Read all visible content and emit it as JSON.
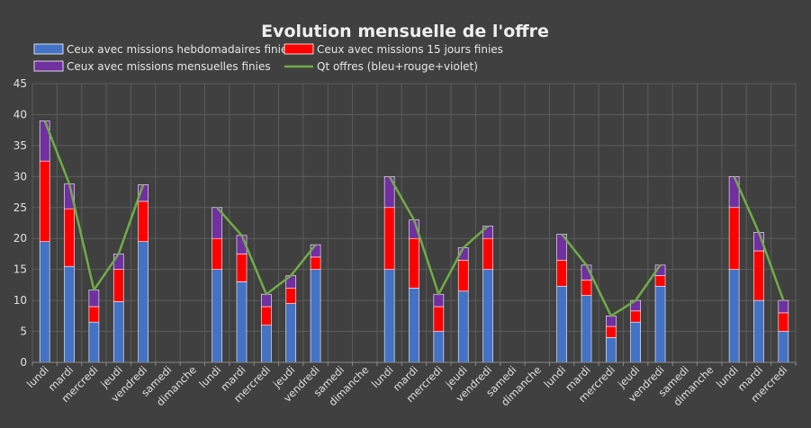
{
  "chart_data": {
    "type": "bar",
    "stacked": true,
    "title": "Evolution mensuelle de l'offre",
    "xlabel": "",
    "ylabel": "",
    "ylim": [
      0,
      45
    ],
    "yticks": [
      0,
      5,
      10,
      15,
      20,
      25,
      30,
      35,
      40,
      45
    ],
    "grid": true,
    "legend_position": "top",
    "categories": [
      "lundi",
      "mardi",
      "mercredi",
      "jeudi",
      "vendredi",
      "samedi",
      "dimanche",
      "lundi",
      "mardi",
      "mercredi",
      "jeudi",
      "vendredi",
      "samedi",
      "dimanche",
      "lundi",
      "mardi",
      "mercredi",
      "jeudi",
      "vendredi",
      "samedi",
      "dimanche",
      "lundi",
      "mardi",
      "mercredi",
      "jeudi",
      "vendredi",
      "samedi",
      "dimanche",
      "lundi",
      "mardi",
      "mercredi"
    ],
    "series": [
      {
        "name": "Ceux avec missions hebdomadaires finies",
        "type": "bar",
        "color": "#4472c4",
        "values": [
          19.5,
          15.5,
          6.5,
          9.8,
          19.5,
          0,
          0,
          15,
          13,
          6,
          9.5,
          15,
          0,
          0,
          15,
          12,
          5,
          11.5,
          15,
          0,
          0,
          12.3,
          10.8,
          4,
          6.5,
          12.3,
          0,
          0,
          15,
          10,
          5
        ]
      },
      {
        "name": "Ceux avec missions 15 jours finies",
        "type": "bar",
        "color": "#ff0000",
        "values": [
          13,
          9.3,
          2.5,
          5.2,
          6.5,
          0,
          0,
          5,
          4.5,
          3,
          2.5,
          2,
          0,
          0,
          10,
          8,
          4,
          5,
          5,
          0,
          0,
          4.2,
          2.5,
          1.8,
          1.8,
          1.7,
          0,
          0,
          10,
          8,
          3
        ]
      },
      {
        "name": "Ceux avec missions mensuelles finies",
        "type": "bar",
        "color": "#7030a0",
        "values": [
          6.5,
          4,
          2.7,
          2.5,
          2.7,
          0,
          0,
          5,
          3,
          2,
          2,
          2,
          0,
          0,
          5,
          3,
          2,
          2,
          2,
          0,
          0,
          4.2,
          2.4,
          1.7,
          1.7,
          1.7,
          0,
          0,
          5,
          3,
          2
        ]
      },
      {
        "name": "Qt offres (bleu+rouge+violet)",
        "type": "line",
        "color": "#70ad47",
        "values": [
          39,
          28.8,
          11.7,
          17.5,
          28.7,
          null,
          null,
          25,
          20.5,
          11,
          14,
          19,
          null,
          null,
          30,
          23,
          11,
          18.5,
          22,
          null,
          null,
          20.7,
          15.7,
          7.5,
          10,
          15.7,
          null,
          null,
          30,
          21,
          10
        ]
      }
    ]
  }
}
